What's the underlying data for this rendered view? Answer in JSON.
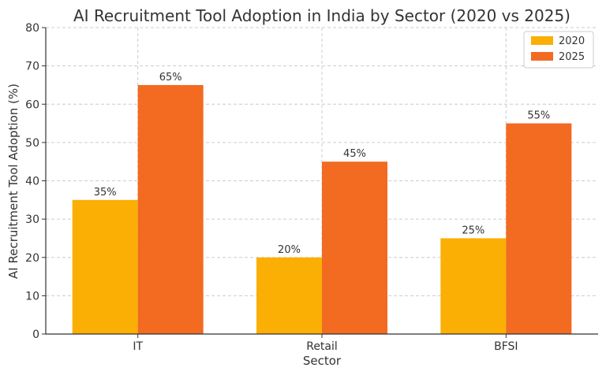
{
  "chart_data": {
    "type": "bar",
    "title": "AI Recruitment Tool Adoption in India by Sector (2020 vs 2025)",
    "xlabel": "Sector",
    "ylabel": "AI Recruitment Tool Adoption (%)",
    "categories": [
      "IT",
      "Retail",
      "BFSI"
    ],
    "series": [
      {
        "name": "2020",
        "values": [
          35,
          20,
          25
        ],
        "color": "#FBAF05",
        "labels": [
          "35%",
          "20%",
          "25%"
        ]
      },
      {
        "name": "2025",
        "values": [
          65,
          45,
          55
        ],
        "color": "#F26B21",
        "labels": [
          "65%",
          "45%",
          "55%"
        ]
      }
    ],
    "ylim": [
      0,
      80
    ],
    "yticks": [
      0,
      10,
      20,
      30,
      40,
      50,
      60,
      70,
      80
    ],
    "grid": true,
    "legend_position": "top-right"
  }
}
